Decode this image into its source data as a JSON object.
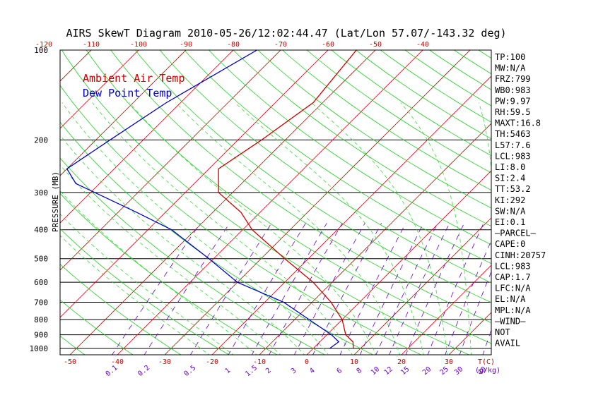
{
  "chart_data": {
    "type": "line",
    "title": "AIRS SkewT Diagram 2010-05-26/12:02:44.47 (Lat/Lon 57.07/-143.32 deg)",
    "ylabel": "PRESSURE (MB)",
    "xlabel_bottom_unit": "T(C)",
    "mixing_ratio_unit": "(g/kg)",
    "legend": [
      {
        "name": "Ambient Air Temp",
        "color": "#cc0000"
      },
      {
        "name": "Dew Point Temp",
        "color": "#0000cc"
      }
    ],
    "pressure_ticks": [
      "100",
      "200",
      "300",
      "400",
      "500",
      "600",
      "700",
      "800",
      "900",
      "1000"
    ],
    "temp_ticks_top": [
      "-120",
      "-110",
      "-100",
      "-90",
      "-80",
      "-70",
      "-60",
      "-50",
      "-40"
    ],
    "temp_ticks_bottom": [
      "-50",
      "-40",
      "-30",
      "-20",
      "-10",
      "0",
      "10",
      "20",
      "30"
    ],
    "mixing_ratio_ticks": [
      "0.1",
      "0.2",
      "0.5",
      "1",
      "1.5",
      "2",
      "3",
      "4",
      "6",
      "8",
      "10",
      "12",
      "15",
      "20",
      "25",
      "30",
      "40"
    ],
    "series": [
      {
        "name": "Ambient Air Temp",
        "color": "#cc0000",
        "points": [
          {
            "p": 100,
            "t": -54
          },
          {
            "p": 150,
            "t": -52
          },
          {
            "p": 200,
            "t": -55
          },
          {
            "p": 250,
            "t": -58
          },
          {
            "p": 300,
            "t": -53
          },
          {
            "p": 350,
            "t": -44
          },
          {
            "p": 400,
            "t": -38
          },
          {
            "p": 500,
            "t": -25
          },
          {
            "p": 600,
            "t": -14
          },
          {
            "p": 700,
            "t": -6
          },
          {
            "p": 800,
            "t": 0
          },
          {
            "p": 900,
            "t": 4
          },
          {
            "p": 950,
            "t": 7
          },
          {
            "p": 1000,
            "t": 8.5
          }
        ]
      },
      {
        "name": "Dew Point Temp",
        "color": "#0000cc",
        "points": [
          {
            "p": 100,
            "t": -75
          },
          {
            "p": 150,
            "t": -83
          },
          {
            "p": 200,
            "t": -87
          },
          {
            "p": 250,
            "t": -90
          },
          {
            "p": 280,
            "t": -85
          },
          {
            "p": 350,
            "t": -66
          },
          {
            "p": 400,
            "t": -55
          },
          {
            "p": 500,
            "t": -41
          },
          {
            "p": 600,
            "t": -30
          },
          {
            "p": 700,
            "t": -16
          },
          {
            "p": 800,
            "t": -7
          },
          {
            "p": 900,
            "t": 1
          },
          {
            "p": 950,
            "t": 4
          },
          {
            "p": 1000,
            "t": 3.5
          }
        ]
      }
    ],
    "grid": true
  },
  "indices": [
    "TP:100",
    "MW:N/A",
    "FRZ:799",
    "WB0:983",
    "PW:9.97",
    "RH:59.5",
    "MAXT:16.8",
    "TH:5463",
    "L57:7.6",
    "LCL:983",
    "LI:8.0",
    "SI:2.4",
    "TT:53.2",
    "KI:292",
    "SW:N/A",
    "EI:0.1",
    "—PARCEL—",
    "CAPE:0",
    "CINH:20757",
    "LCL:983",
    "CAP:1.7",
    "LFC:N/A",
    "EL:N/A",
    "MPL:N/A",
    "—WIND—",
    "NOT",
    "AVAIL"
  ],
  "colors": {
    "temperature": "#cc0000",
    "dewpoint": "#0000cc",
    "isotherm": "#cc0000",
    "dry_adiabat": "#22cc22",
    "moist_adiabat": "#33dd33",
    "mixing_ratio": "#6600cc"
  }
}
